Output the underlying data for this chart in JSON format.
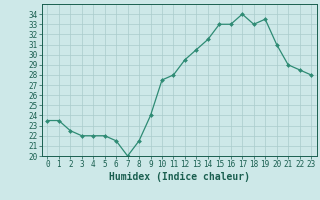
{
  "x": [
    0,
    1,
    2,
    3,
    4,
    5,
    6,
    7,
    8,
    9,
    10,
    11,
    12,
    13,
    14,
    15,
    16,
    17,
    18,
    19,
    20,
    21,
    22,
    23
  ],
  "y": [
    23.5,
    23.5,
    22.5,
    22.0,
    22.0,
    22.0,
    21.5,
    20.0,
    21.5,
    24.0,
    27.5,
    28.0,
    29.5,
    30.5,
    31.5,
    33.0,
    33.0,
    34.0,
    33.0,
    33.5,
    31.0,
    29.0,
    28.5,
    28.0
  ],
  "line_color": "#2e8b74",
  "marker": "D",
  "marker_size": 2.0,
  "bg_color": "#cde8e8",
  "grid_color": "#aacccc",
  "xlabel": "Humidex (Indice chaleur)",
  "xlim": [
    -0.5,
    23.5
  ],
  "ylim": [
    20,
    35
  ],
  "yticks": [
    20,
    21,
    22,
    23,
    24,
    25,
    26,
    27,
    28,
    29,
    30,
    31,
    32,
    33,
    34
  ],
  "xticks": [
    0,
    1,
    2,
    3,
    4,
    5,
    6,
    7,
    8,
    9,
    10,
    11,
    12,
    13,
    14,
    15,
    16,
    17,
    18,
    19,
    20,
    21,
    22,
    23
  ],
  "tick_color": "#1a5f50",
  "label_fontsize": 5.5,
  "xlabel_fontsize": 7.0
}
